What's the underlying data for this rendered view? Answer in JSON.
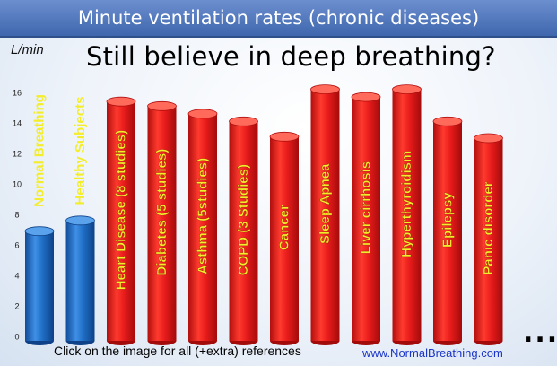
{
  "header": {
    "title": "Minute ventilation rates (chronic diseases)"
  },
  "headline": "Still believe in deep breathing?",
  "footer": {
    "note": "Click on the image for all (+extra) references",
    "site": "www.NormalBreathing.com",
    "ellipsis": "..."
  },
  "colors": {
    "normal_bar": "#1f6fc6",
    "disease_bar": "#e51d1d",
    "normal_label": "#f4ee2a",
    "disease_label": "#f4ee2a",
    "title_bar": "#4f77bd"
  },
  "chart_data": {
    "type": "bar",
    "ylabel": "L/min",
    "ylim": [
      0,
      16
    ],
    "yticks": [
      0,
      2,
      4,
      6,
      8,
      10,
      12,
      14,
      16
    ],
    "grid": false,
    "categories": [
      "Normal Breathing",
      "Healthy Subjects",
      "Heart Disease (8 studies)",
      "Diabetes (5 studies)",
      "Asthma (5studies)",
      "COPD (3 Studies)",
      "Cancer",
      "Sleep Apnea",
      "Liver cirrhosis",
      "Hyperthyroidism",
      "Epilepsy",
      "Panic disorder"
    ],
    "values": [
      6.9,
      7.6,
      15.4,
      15.1,
      14.6,
      14.1,
      13.1,
      16.2,
      15.7,
      16.2,
      14.1,
      13.0
    ],
    "group": [
      "normal",
      "normal",
      "disease",
      "disease",
      "disease",
      "disease",
      "disease",
      "disease",
      "disease",
      "disease",
      "disease",
      "disease"
    ]
  }
}
